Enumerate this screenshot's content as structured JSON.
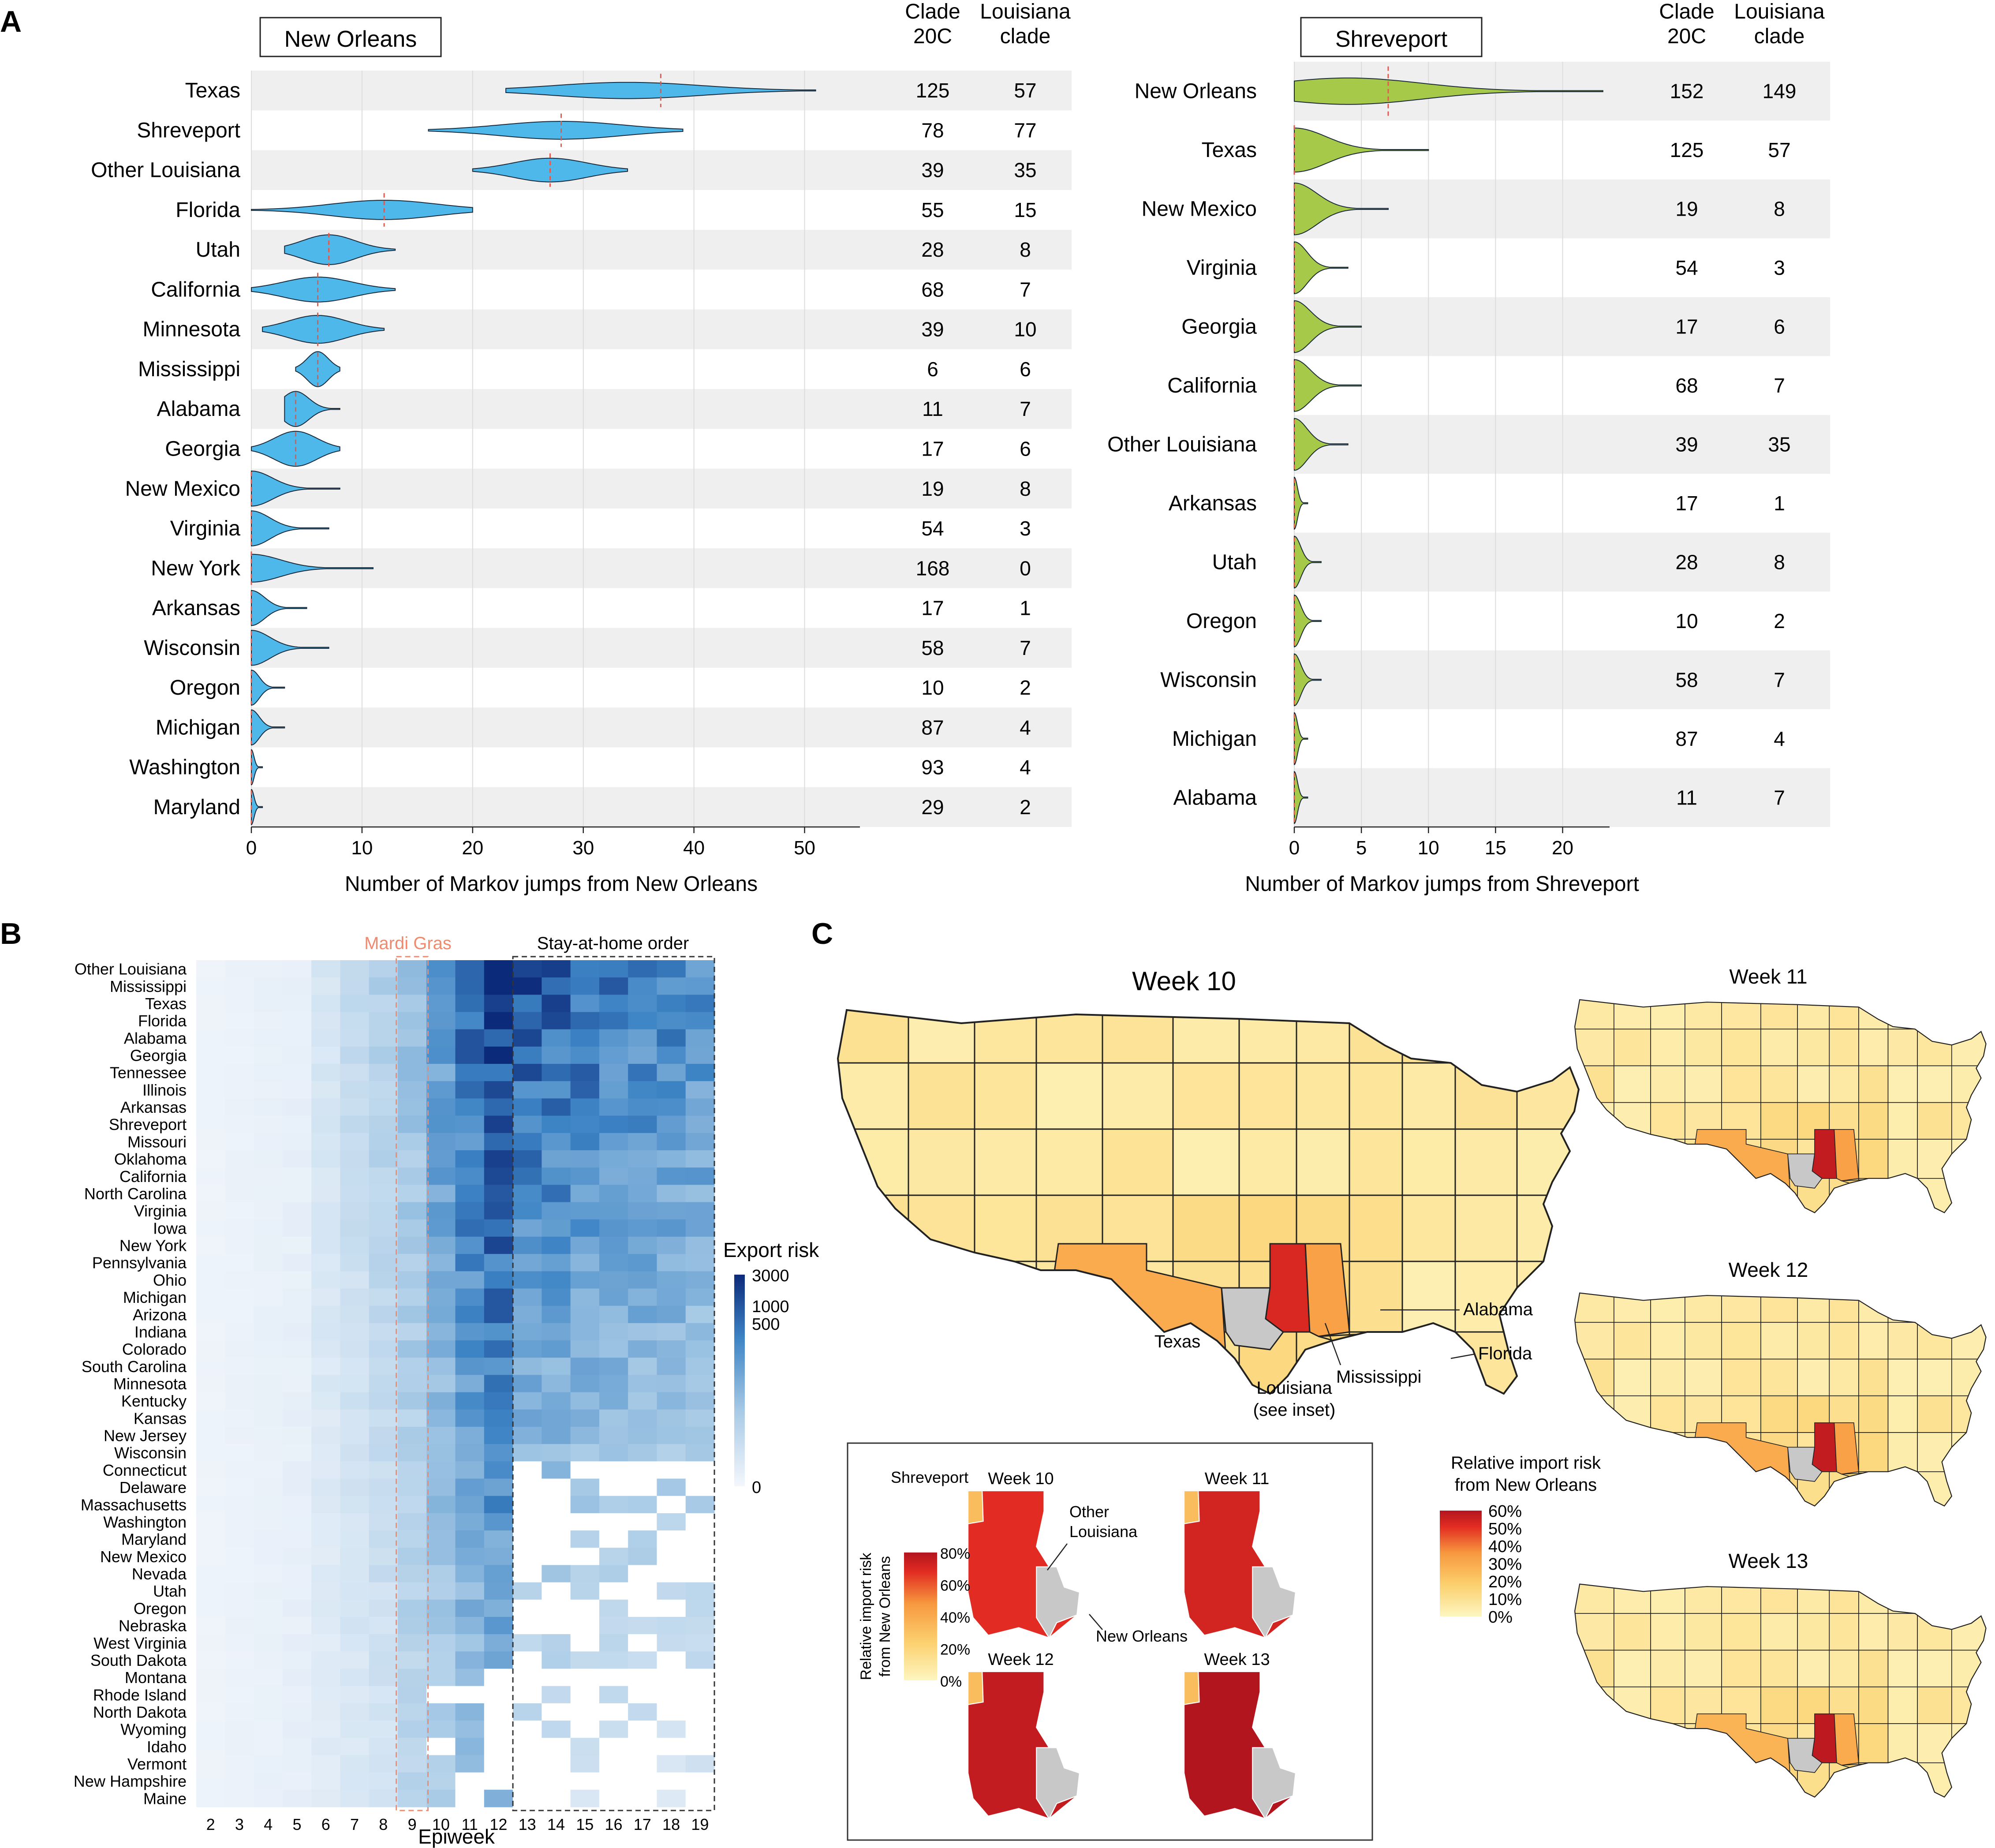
{
  "panels": {
    "A": {
      "letter": "A",
      "columns": [
        "Clade\n20C",
        "Louisiana\nclade"
      ],
      "new_orleans": {
        "title": "New Orleans",
        "xlabel": "Number of Markov jumps from New Orleans",
        "ticks": [
          0,
          10,
          20,
          30,
          40,
          50
        ],
        "xlim": [
          0,
          55
        ],
        "rows": [
          {
            "name": "Texas",
            "median": 37,
            "min": 23,
            "max": 51,
            "peak": 34,
            "c20": "125",
            "la": "57"
          },
          {
            "name": "Shreveport",
            "median": 28,
            "min": 16,
            "max": 39,
            "peak": 28,
            "c20": "78",
            "la": "77"
          },
          {
            "name": "Other Louisiana",
            "median": 27,
            "min": 20,
            "max": 34,
            "peak": 27,
            "c20": "39",
            "la": "35"
          },
          {
            "name": "Florida",
            "median": 12,
            "min": 0,
            "max": 20,
            "peak": 12,
            "c20": "55",
            "la": "15"
          },
          {
            "name": "Utah",
            "median": 7,
            "min": 3,
            "max": 13,
            "peak": 7,
            "c20": "28",
            "la": "8"
          },
          {
            "name": "California",
            "median": 6,
            "min": 0,
            "max": 13,
            "peak": 6,
            "c20": "68",
            "la": "7"
          },
          {
            "name": "Minnesota",
            "median": 6,
            "min": 1,
            "max": 12,
            "peak": 6,
            "c20": "39",
            "la": "10"
          },
          {
            "name": "Mississippi",
            "median": 6,
            "min": 4,
            "max": 8,
            "peak": 6,
            "c20": "6",
            "la": "6"
          },
          {
            "name": "Alabama",
            "median": 4,
            "min": 3,
            "max": 8,
            "peak": 4,
            "c20": "11",
            "la": "7"
          },
          {
            "name": "Georgia",
            "median": 4,
            "min": 0,
            "max": 8,
            "peak": 4,
            "c20": "17",
            "la": "6"
          },
          {
            "name": "New Mexico",
            "median": 0,
            "min": 0,
            "max": 8,
            "peak": 0,
            "c20": "19",
            "la": "8"
          },
          {
            "name": "Virginia",
            "median": 0,
            "min": 0,
            "max": 7,
            "peak": 0,
            "c20": "54",
            "la": "3"
          },
          {
            "name": "New York",
            "median": 0,
            "min": 0,
            "max": 11,
            "peak": 0,
            "c20": "168",
            "la": "0"
          },
          {
            "name": "Arkansas",
            "median": 0,
            "min": 0,
            "max": 5,
            "peak": 0,
            "c20": "17",
            "la": "1"
          },
          {
            "name": "Wisconsin",
            "median": 0,
            "min": 0,
            "max": 7,
            "peak": 0,
            "c20": "58",
            "la": "7"
          },
          {
            "name": "Oregon",
            "median": 0,
            "min": 0,
            "max": 3,
            "peak": 0,
            "c20": "10",
            "la": "2"
          },
          {
            "name": "Michigan",
            "median": 0,
            "min": 0,
            "max": 3,
            "peak": 0,
            "c20": "87",
            "la": "4"
          },
          {
            "name": "Washington",
            "median": 0,
            "min": 0,
            "max": 1,
            "peak": 0,
            "c20": "93",
            "la": "4"
          },
          {
            "name": "Maryland",
            "median": 0,
            "min": 0,
            "max": 1,
            "peak": 0,
            "c20": "29",
            "la": "2"
          }
        ]
      },
      "shreveport": {
        "title": "Shreveport",
        "xlabel": "Number of Markov jumps from Shreveport",
        "ticks": [
          0,
          5,
          10,
          15,
          20
        ],
        "xlim": [
          0,
          23.5
        ],
        "rows": [
          {
            "name": "New Orleans",
            "median": 7,
            "min": 0,
            "max": 23,
            "peak": 4,
            "c20": "152",
            "la": "149"
          },
          {
            "name": "Texas",
            "median": 0,
            "min": 0,
            "max": 10,
            "peak": 0,
            "c20": "125",
            "la": "57"
          },
          {
            "name": "New Mexico",
            "median": 0,
            "min": 0,
            "max": 7,
            "peak": 0,
            "c20": "19",
            "la": "8"
          },
          {
            "name": "Virginia",
            "median": 0,
            "min": 0,
            "max": 4,
            "peak": 0,
            "c20": "54",
            "la": "3"
          },
          {
            "name": "Georgia",
            "median": 0,
            "min": 0,
            "max": 5,
            "peak": 0,
            "c20": "17",
            "la": "6"
          },
          {
            "name": "California",
            "median": 0,
            "min": 0,
            "max": 5,
            "peak": 0,
            "c20": "68",
            "la": "7"
          },
          {
            "name": "Other Louisiana",
            "median": 0,
            "min": 0,
            "max": 4,
            "peak": 0,
            "c20": "39",
            "la": "35"
          },
          {
            "name": "Arkansas",
            "median": 0,
            "min": 0,
            "max": 1,
            "peak": 0,
            "c20": "17",
            "la": "1"
          },
          {
            "name": "Utah",
            "median": 0,
            "min": 0,
            "max": 2,
            "peak": 0,
            "c20": "28",
            "la": "8"
          },
          {
            "name": "Oregon",
            "median": 0,
            "min": 0,
            "max": 2,
            "peak": 0,
            "c20": "10",
            "la": "2"
          },
          {
            "name": "Wisconsin",
            "median": 0,
            "min": 0,
            "max": 2,
            "peak": 0,
            "c20": "58",
            "la": "7"
          },
          {
            "name": "Michigan",
            "median": 0,
            "min": 0,
            "max": 1,
            "peak": 0,
            "c20": "87",
            "la": "4"
          },
          {
            "name": "Alabama",
            "median": 0,
            "min": 0,
            "max": 1,
            "peak": 0,
            "c20": "11",
            "la": "7"
          }
        ]
      }
    },
    "B": {
      "letter": "B",
      "xlabel": "Epiweek",
      "weeks": [
        2,
        3,
        4,
        5,
        6,
        7,
        8,
        9,
        10,
        11,
        12,
        13,
        14,
        15,
        16,
        17,
        18,
        19
      ],
      "mardi_gras_label": "Mardi Gras",
      "mardi_gras_weeks": [
        9
      ],
      "stay_home_label": "Stay-at-home order",
      "stay_home_weeks": [
        13,
        19
      ],
      "legend_title": "Export risk",
      "legend_ticks": [
        "3000",
        "1000",
        "500",
        "0"
      ],
      "locations": [
        "Other Louisiana",
        "Mississippi",
        "Texas",
        "Florida",
        "Alabama",
        "Georgia",
        "Tennessee",
        "Illinois",
        "Arkansas",
        "Shreveport",
        "Missouri",
        "Oklahoma",
        "California",
        "North Carolina",
        "Virginia",
        "Iowa",
        "New York",
        "Pennsylvania",
        "Ohio",
        "Michigan",
        "Arizona",
        "Indiana",
        "Colorado",
        "South Carolina",
        "Minnesota",
        "Kentucky",
        "Kansas",
        "New Jersey",
        "Wisconsin",
        "Connecticut",
        "Delaware",
        "Massachusetts",
        "Washington",
        "Maryland",
        "New Mexico",
        "Nevada",
        "Utah",
        "Oregon",
        "Nebraska",
        "West Virginia",
        "South Dakota",
        "Montana",
        "Rhode Island",
        "North Dakota",
        "Wyoming",
        "Idaho",
        "Vermont",
        "New Hampshire",
        "Maine"
      ]
    },
    "C": {
      "letter": "C",
      "main_title": "Week 10",
      "small_titles": [
        "Week 11",
        "Week 12",
        "Week 13"
      ],
      "labels": {
        "texas": "Texas",
        "alabama": "Alabama",
        "florida": "Florida",
        "mississippi": "Mississippi",
        "louisiana": "Louisiana",
        "see_inset": "(see inset)"
      },
      "legend_title_1": "Relative import risk",
      "legend_title_2": "from New Orleans",
      "legend_ticks": [
        "60%",
        "50%",
        "40%",
        "30%",
        "20%",
        "10%",
        "0%"
      ],
      "inset": {
        "weeks": [
          "Week 10",
          "Week 11",
          "Week 12",
          "Week 13"
        ],
        "shreveport": "Shreveport",
        "other_louisiana_1": "Other",
        "other_louisiana_2": "Louisiana",
        "new_orleans": "New Orleans",
        "legend_title_1": "Relative import risk",
        "legend_title_2": "from New Orleans",
        "legend_ticks": [
          "80%",
          "60%",
          "40%",
          "20%",
          "0%"
        ]
      }
    }
  },
  "colors": {
    "violin_new_orleans": "#4fb8ea",
    "violin_shreveport": "#a6c94a",
    "median_line": "#e05a4e",
    "row_band": "#efefef",
    "mardi_gras": "#f08a6e",
    "heatmap_dark": "#0c2a7a",
    "map_low": "#fdf2b0",
    "map_high": "#b3151f",
    "louisiana_gray": "#c8c8c8"
  }
}
